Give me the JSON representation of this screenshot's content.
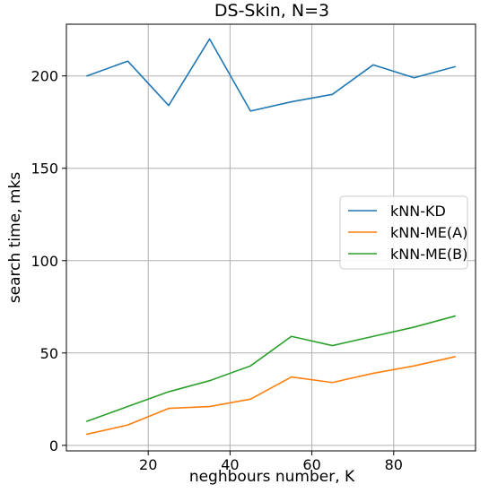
{
  "chart_data": {
    "type": "line",
    "title": "DS-Skin, N=3",
    "xlabel": "neghbours number, K",
    "ylabel": "search time, mks",
    "xlim": [
      0,
      100
    ],
    "ylim": [
      -3,
      228
    ],
    "xticks": [
      20,
      40,
      60,
      80
    ],
    "yticks": [
      0,
      50,
      100,
      150,
      200
    ],
    "grid": true,
    "legend_position": "center-right",
    "x": [
      5,
      15,
      25,
      35,
      45,
      55,
      65,
      75,
      85,
      95
    ],
    "series": [
      {
        "name": "kNN-KD",
        "color": "#1f77b4",
        "values": [
          200,
          208,
          184,
          220,
          181,
          186,
          190,
          206,
          199,
          205
        ]
      },
      {
        "name": "kNN-ME(A)",
        "color": "#ff7f0e",
        "values": [
          6,
          11,
          20,
          21,
          25,
          37,
          34,
          39,
          43,
          48
        ]
      },
      {
        "name": "kNN-ME(B)",
        "color": "#2ca02c",
        "values": [
          13,
          21,
          29,
          35,
          43,
          59,
          54,
          59,
          64,
          70
        ]
      }
    ]
  }
}
